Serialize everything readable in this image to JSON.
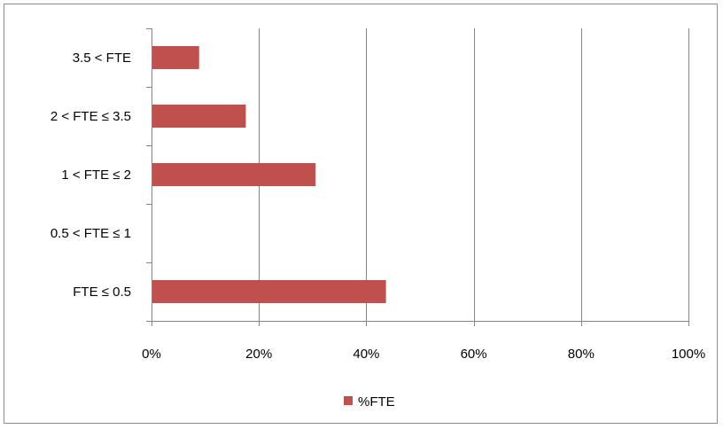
{
  "chart_data": {
    "type": "bar",
    "orientation": "horizontal",
    "title": "",
    "xlabel": "",
    "ylabel": "",
    "categories": [
      "3.5 < FTE",
      "2 < FTE  ≤ 3.5",
      "1 < FTE  ≤ 2",
      "0.5 < FTE ≤ 1",
      "FTE ≤ 0.5"
    ],
    "series": [
      {
        "name": "%FTE",
        "values": [
          8.7,
          17.4,
          30.4,
          0,
          43.5
        ],
        "color": "#c0504d"
      }
    ],
    "xlim": [
      0,
      100
    ],
    "x_ticks": [
      "0%",
      "20%",
      "40%",
      "60%",
      "80%",
      "100%"
    ],
    "x_tick_values": [
      0,
      20,
      40,
      60,
      80,
      100
    ],
    "grid": "vertical major gridlines",
    "legend_position": "bottom",
    "gridline_color": "#868686"
  }
}
